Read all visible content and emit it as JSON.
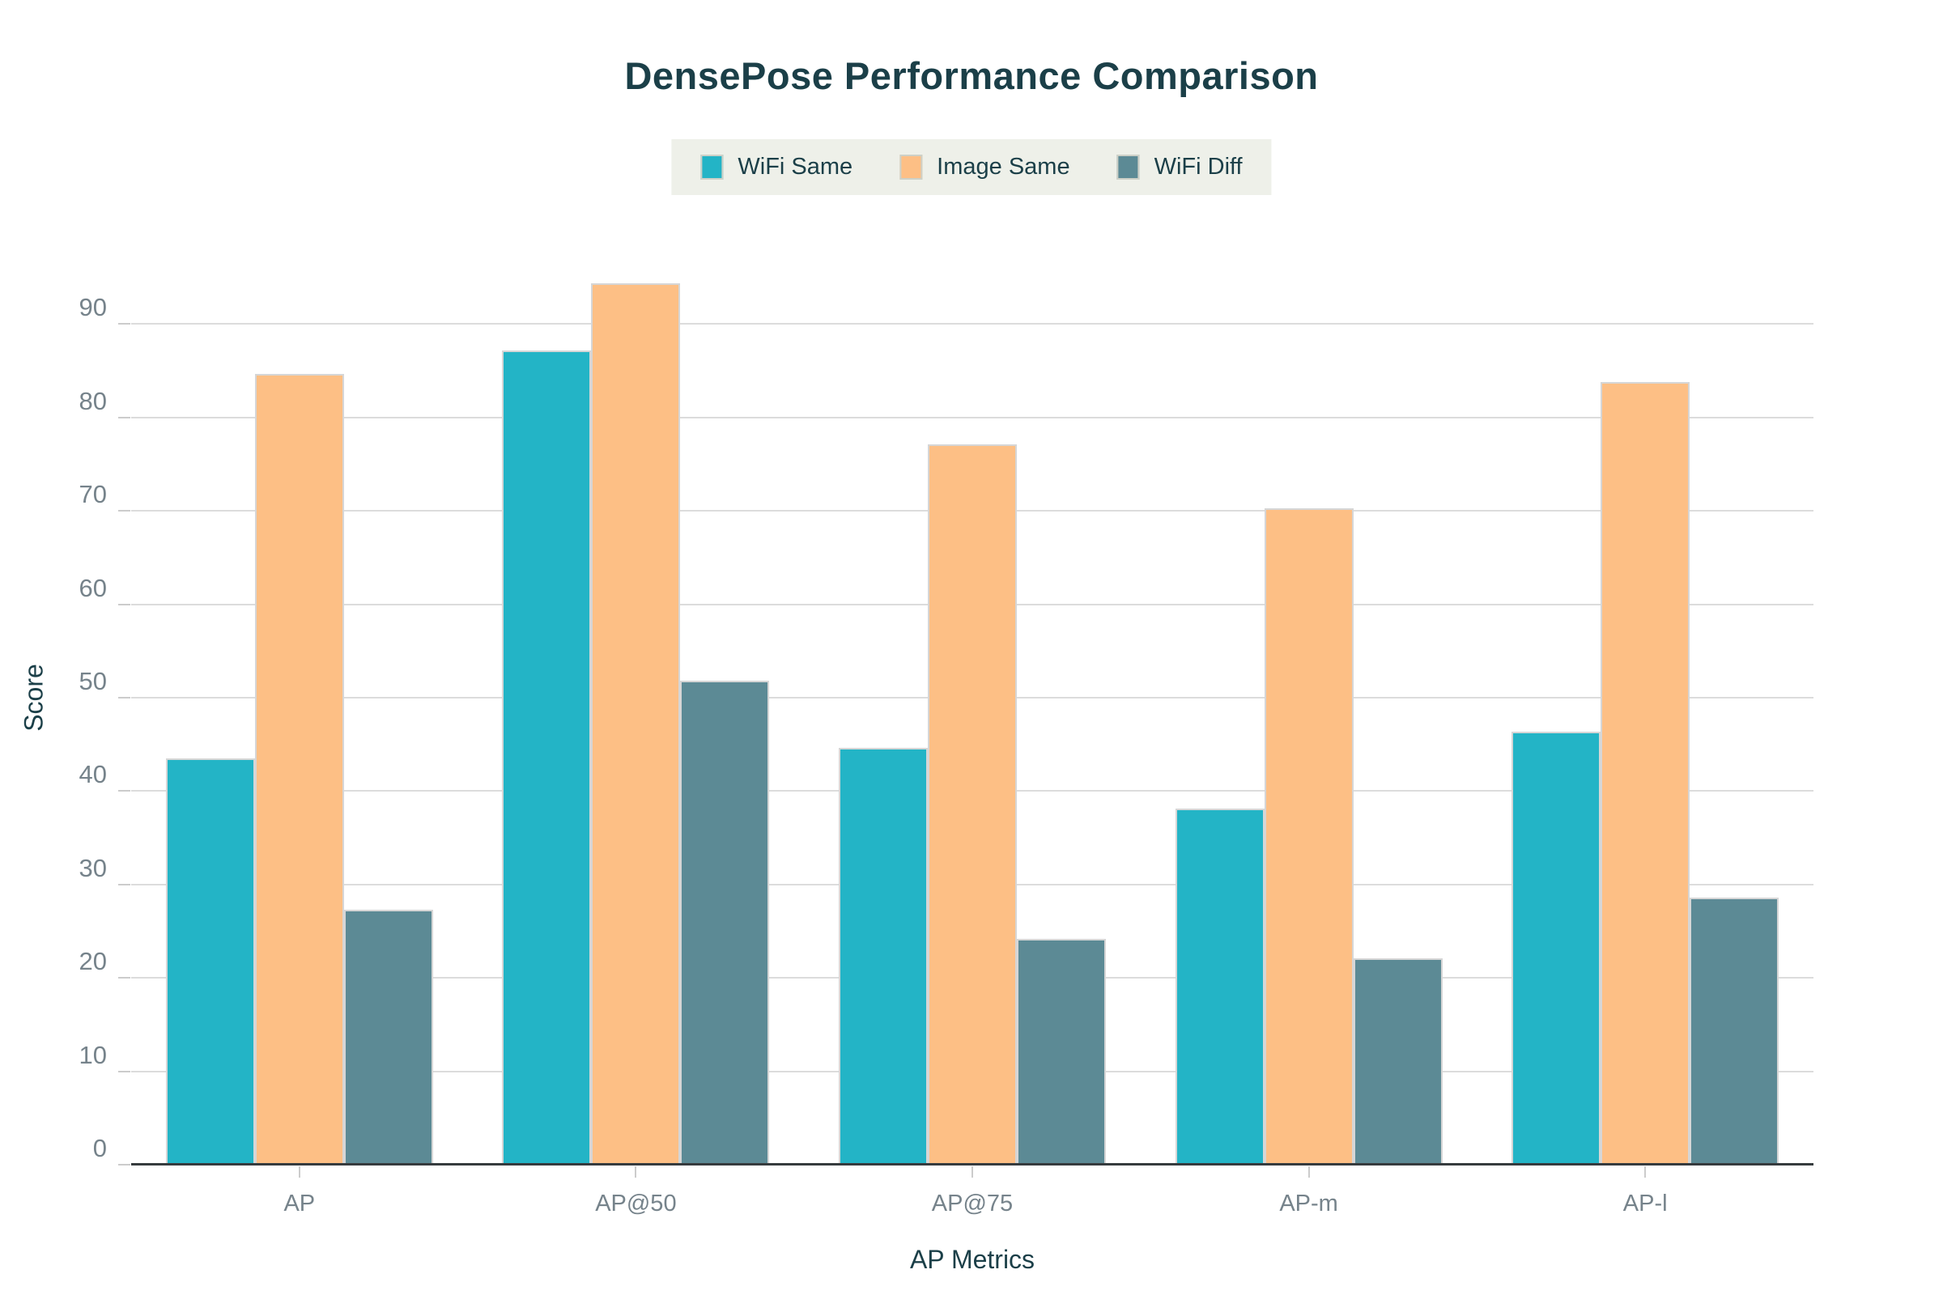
{
  "title": "DensePose Performance Comparison",
  "chart_data": {
    "type": "bar",
    "title": "DensePose Performance Comparison",
    "xlabel": "AP Metrics",
    "ylabel": "Score",
    "categories": [
      "AP",
      "AP@50",
      "AP@75",
      "AP-m",
      "AP-l"
    ],
    "series": [
      {
        "name": "WiFi Same",
        "color": "#23b4c6",
        "values": [
          43.5,
          87.2,
          44.6,
          38.1,
          46.4
        ]
      },
      {
        "name": "Image Same",
        "color": "#fdbf85",
        "values": [
          84.7,
          94.4,
          77.1,
          70.3,
          83.8
        ]
      },
      {
        "name": "WiFi Diff",
        "color": "#5c8a95",
        "values": [
          27.3,
          51.8,
          24.2,
          22.1,
          28.6
        ]
      }
    ],
    "ylim": [
      0,
      100
    ],
    "yticks": [
      0,
      10,
      20,
      30,
      40,
      50,
      60,
      70,
      80,
      90
    ],
    "grid": true,
    "legend_position": "top-center"
  },
  "colors": {
    "background": "#ffffff",
    "title_text": "#1b3f48",
    "tick_text": "#76838b",
    "gridline": "#dcdcdc",
    "axis_line": "#363b3e",
    "legend_background": "#eef0e9"
  }
}
